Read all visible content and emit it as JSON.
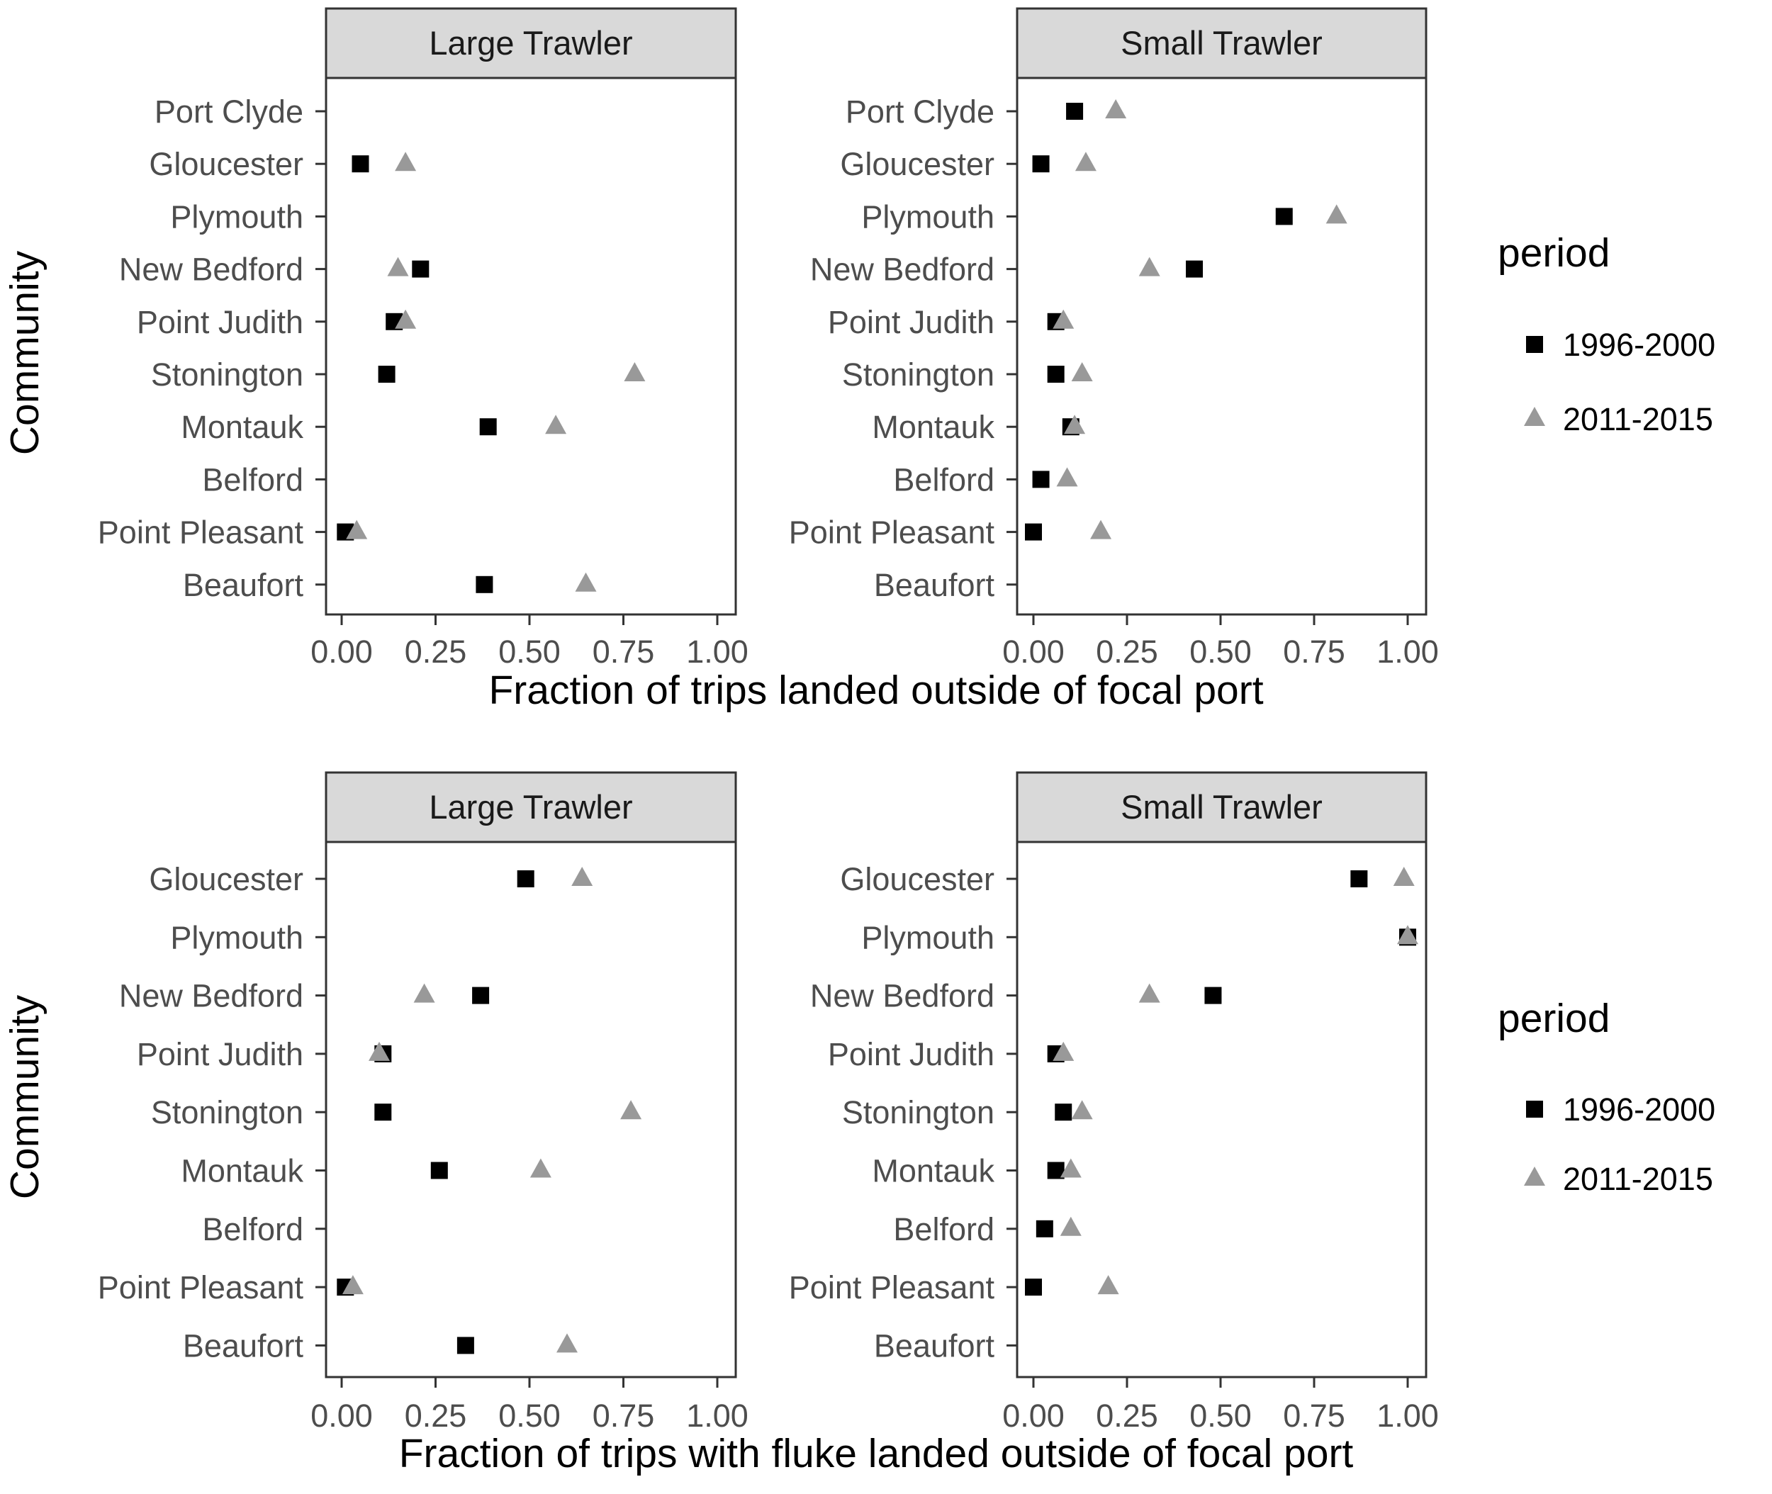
{
  "chart_data": [
    {
      "type": "scatter",
      "row": 0,
      "xlabel": "Fraction of trips landed outside of focal port",
      "ylabel": "Community",
      "xlim": [
        0,
        1
      ],
      "xticks": [
        "0.00",
        "0.25",
        "0.50",
        "0.75",
        "1.00"
      ],
      "communities": [
        "Port Clyde",
        "Gloucester",
        "Plymouth",
        "New Bedford",
        "Point Judith",
        "Stonington",
        "Montauk",
        "Belford",
        "Point Pleasant",
        "Beaufort"
      ],
      "legend": {
        "title": "period",
        "placement": "right",
        "entries": [
          {
            "label": "1996-2000",
            "shape": "square",
            "color": "#000000"
          },
          {
            "label": "2011-2015",
            "shape": "triangle",
            "color": "#999999"
          }
        ]
      },
      "facets": [
        {
          "strip": "Large Trawler",
          "series": [
            {
              "name": "1996-2000",
              "points": [
                {
                  "community": "Gloucester",
                  "x": 0.05
                },
                {
                  "community": "New Bedford",
                  "x": 0.21
                },
                {
                  "community": "Point Judith",
                  "x": 0.14
                },
                {
                  "community": "Stonington",
                  "x": 0.12
                },
                {
                  "community": "Montauk",
                  "x": 0.39
                },
                {
                  "community": "Point Pleasant",
                  "x": 0.01
                },
                {
                  "community": "Beaufort",
                  "x": 0.38
                }
              ]
            },
            {
              "name": "2011-2015",
              "points": [
                {
                  "community": "Gloucester",
                  "x": 0.17
                },
                {
                  "community": "New Bedford",
                  "x": 0.15
                },
                {
                  "community": "Point Judith",
                  "x": 0.17
                },
                {
                  "community": "Stonington",
                  "x": 0.78
                },
                {
                  "community": "Montauk",
                  "x": 0.57
                },
                {
                  "community": "Point Pleasant",
                  "x": 0.04
                },
                {
                  "community": "Beaufort",
                  "x": 0.65
                }
              ]
            }
          ]
        },
        {
          "strip": "Small Trawler",
          "series": [
            {
              "name": "1996-2000",
              "points": [
                {
                  "community": "Port Clyde",
                  "x": 0.11
                },
                {
                  "community": "Gloucester",
                  "x": 0.02
                },
                {
                  "community": "Plymouth",
                  "x": 0.67
                },
                {
                  "community": "New Bedford",
                  "x": 0.43
                },
                {
                  "community": "Point Judith",
                  "x": 0.06
                },
                {
                  "community": "Stonington",
                  "x": 0.06
                },
                {
                  "community": "Montauk",
                  "x": 0.1
                },
                {
                  "community": "Belford",
                  "x": 0.02
                },
                {
                  "community": "Point Pleasant",
                  "x": 0.0
                }
              ]
            },
            {
              "name": "2011-2015",
              "points": [
                {
                  "community": "Port Clyde",
                  "x": 0.22
                },
                {
                  "community": "Gloucester",
                  "x": 0.14
                },
                {
                  "community": "Plymouth",
                  "x": 0.81
                },
                {
                  "community": "New Bedford",
                  "x": 0.31
                },
                {
                  "community": "Point Judith",
                  "x": 0.08
                },
                {
                  "community": "Stonington",
                  "x": 0.13
                },
                {
                  "community": "Montauk",
                  "x": 0.11
                },
                {
                  "community": "Belford",
                  "x": 0.09
                },
                {
                  "community": "Point Pleasant",
                  "x": 0.18
                }
              ]
            }
          ]
        }
      ]
    },
    {
      "type": "scatter",
      "row": 1,
      "xlabel": "Fraction of trips with fluke landed outside of focal port",
      "ylabel": "Community",
      "xlim": [
        0,
        1
      ],
      "xticks": [
        "0.00",
        "0.25",
        "0.50",
        "0.75",
        "1.00"
      ],
      "communities": [
        "Gloucester",
        "Plymouth",
        "New Bedford",
        "Point Judith",
        "Stonington",
        "Montauk",
        "Belford",
        "Point Pleasant",
        "Beaufort"
      ],
      "legend": {
        "title": "period",
        "placement": "right",
        "entries": [
          {
            "label": "1996-2000",
            "shape": "square",
            "color": "#000000"
          },
          {
            "label": "2011-2015",
            "shape": "triangle",
            "color": "#999999"
          }
        ]
      },
      "facets": [
        {
          "strip": "Large Trawler",
          "series": [
            {
              "name": "1996-2000",
              "points": [
                {
                  "community": "Gloucester",
                  "x": 0.49
                },
                {
                  "community": "New Bedford",
                  "x": 0.37
                },
                {
                  "community": "Point Judith",
                  "x": 0.11
                },
                {
                  "community": "Stonington",
                  "x": 0.11
                },
                {
                  "community": "Montauk",
                  "x": 0.26
                },
                {
                  "community": "Point Pleasant",
                  "x": 0.01
                },
                {
                  "community": "Beaufort",
                  "x": 0.33
                }
              ]
            },
            {
              "name": "2011-2015",
              "points": [
                {
                  "community": "Gloucester",
                  "x": 0.64
                },
                {
                  "community": "New Bedford",
                  "x": 0.22
                },
                {
                  "community": "Point Judith",
                  "x": 0.1
                },
                {
                  "community": "Stonington",
                  "x": 0.77
                },
                {
                  "community": "Montauk",
                  "x": 0.53
                },
                {
                  "community": "Point Pleasant",
                  "x": 0.03
                },
                {
                  "community": "Beaufort",
                  "x": 0.6
                }
              ]
            }
          ]
        },
        {
          "strip": "Small Trawler",
          "series": [
            {
              "name": "1996-2000",
              "points": [
                {
                  "community": "Gloucester",
                  "x": 0.87
                },
                {
                  "community": "Plymouth",
                  "x": 1.0
                },
                {
                  "community": "New Bedford",
                  "x": 0.48
                },
                {
                  "community": "Point Judith",
                  "x": 0.06
                },
                {
                  "community": "Stonington",
                  "x": 0.08
                },
                {
                  "community": "Montauk",
                  "x": 0.06
                },
                {
                  "community": "Belford",
                  "x": 0.03
                },
                {
                  "community": "Point Pleasant",
                  "x": 0.0
                }
              ]
            },
            {
              "name": "2011-2015",
              "points": [
                {
                  "community": "Gloucester",
                  "x": 0.99
                },
                {
                  "community": "Plymouth",
                  "x": 1.0
                },
                {
                  "community": "New Bedford",
                  "x": 0.31
                },
                {
                  "community": "Point Judith",
                  "x": 0.08
                },
                {
                  "community": "Stonington",
                  "x": 0.13
                },
                {
                  "community": "Montauk",
                  "x": 0.1
                },
                {
                  "community": "Belford",
                  "x": 0.1
                },
                {
                  "community": "Point Pleasant",
                  "x": 0.2
                }
              ]
            }
          ]
        }
      ]
    }
  ]
}
